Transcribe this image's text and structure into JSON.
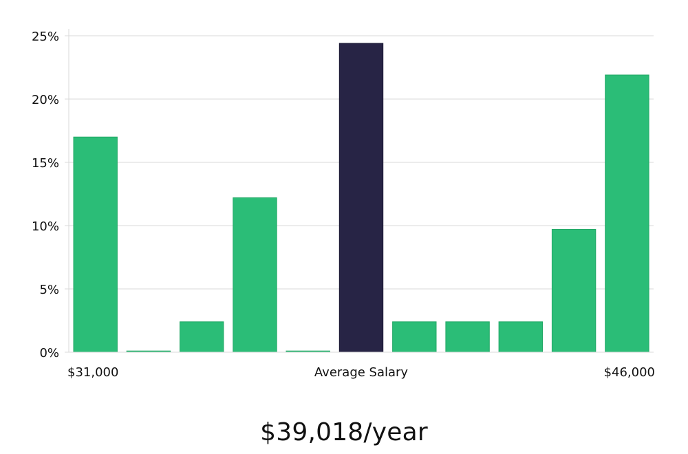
{
  "colors": {
    "bar": "#2bbd77",
    "bar_highlight": "#272445",
    "grid": "#d9d9d9",
    "axis": "#d9d9d9",
    "text": "#111111"
  },
  "chart_data": {
    "type": "bar",
    "categories": [
      "1",
      "2",
      "3",
      "4",
      "5",
      "6",
      "7",
      "8",
      "9",
      "10",
      "11"
    ],
    "values": [
      17.0,
      0.1,
      2.4,
      12.2,
      0.1,
      24.4,
      2.4,
      2.4,
      2.4,
      9.7,
      21.9
    ],
    "highlight_index": 5,
    "ylim": [
      0,
      25
    ],
    "yticks": [
      0,
      5,
      10,
      15,
      20,
      25
    ],
    "ytick_labels": [
      "0%",
      "5%",
      "10%",
      "15%",
      "20%",
      "25%"
    ],
    "x_labels": {
      "left": "$31,000",
      "center": "Average Salary",
      "right": "$46,000"
    },
    "grid": true
  },
  "summary": {
    "salary": "$39,018/year"
  }
}
